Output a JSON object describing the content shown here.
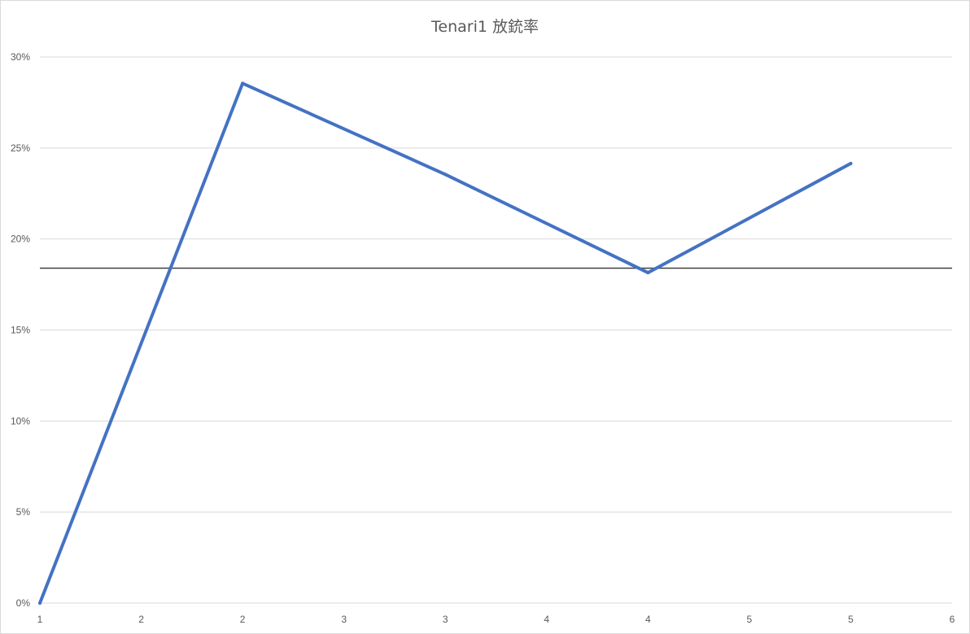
{
  "chart_data": {
    "type": "line",
    "title": "Tenari1 放銃率",
    "x_tick_labels": [
      "1",
      "2",
      "2",
      "3",
      "3",
      "4",
      "4",
      "5",
      "5",
      "6"
    ],
    "y_tick_labels": [
      "0%",
      "5%",
      "10%",
      "15%",
      "20%",
      "25%",
      "30%"
    ],
    "ylim": [
      0,
      0.3
    ],
    "y_ticks": [
      0,
      0.05,
      0.1,
      0.15,
      0.2,
      0.25,
      0.3
    ],
    "x_range": [
      0,
      9
    ],
    "grid": "horizontal",
    "series": [
      {
        "color": "#4472c4",
        "x": [
          0,
          2,
          4,
          6,
          8
        ],
        "values": [
          0.0,
          0.2855,
          0.2355,
          0.1815,
          0.2415
        ]
      }
    ],
    "reference_line": {
      "value": 0.184,
      "color": "#404040"
    }
  }
}
